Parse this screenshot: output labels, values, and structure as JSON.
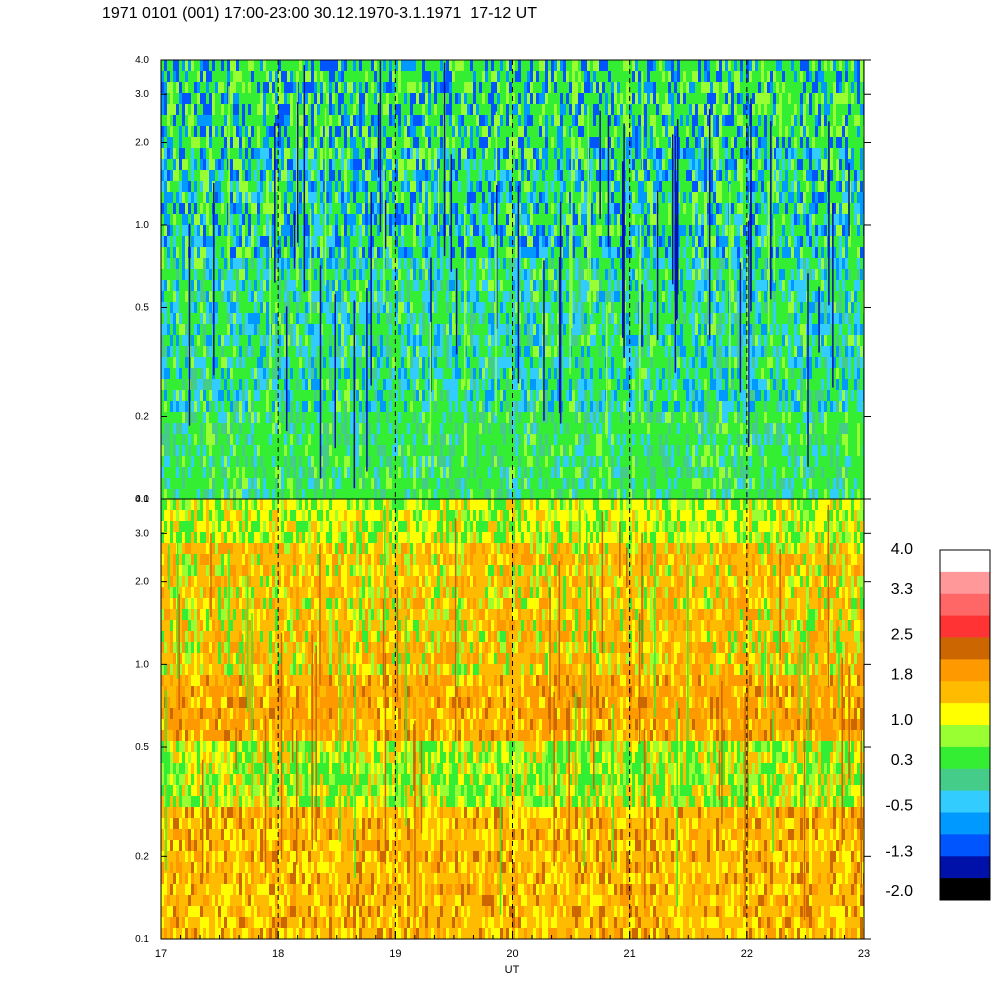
{
  "title": "1971 0101 (001) 17:00-23:00 30.12.1970-3.1.1971  17-12 UT",
  "chart_data": {
    "type": "heatmap",
    "panels": [
      {
        "name": "",
        "y_scale": "log",
        "ylim": [
          0.1,
          4.0
        ],
        "y_ticks": [
          "4.0",
          "3.0",
          "2.0",
          "1.0",
          "0.5",
          "0.2",
          "0.1"
        ],
        "y_tick_values": [
          4.0,
          3.0,
          2.0,
          1.0,
          0.5,
          0.2,
          0.1
        ],
        "dominant_levels": [
          "green",
          "cyan",
          "blue",
          "yellow-green"
        ],
        "low_freq_band_level": "green",
        "notes": "mostly green/cyan with blue streaks near 1.0-2.0"
      },
      {
        "name": "",
        "y_scale": "log",
        "ylim": [
          0.1,
          4.0
        ],
        "y_ticks": [
          "4.0",
          "3.0",
          "2.0",
          "1.0",
          "0.5",
          "0.2",
          "0.1"
        ],
        "y_tick_values": [
          4.0,
          3.0,
          2.0,
          1.0,
          0.5,
          0.2,
          0.1
        ],
        "dominant_levels": [
          "orange",
          "yellow",
          "green"
        ],
        "low_freq_band_level": "orange",
        "notes": "orange band near 0.7-1.1, green streaks near 0.4-0.6"
      }
    ],
    "x_label": "UT",
    "xlim": [
      17,
      23
    ],
    "x_ticks": [
      "17",
      "18",
      "19",
      "20",
      "21",
      "22",
      "23"
    ],
    "x_tick_values": [
      17,
      18,
      19,
      20,
      21,
      22,
      23
    ],
    "dashed_hour_lines": [
      18,
      19,
      20,
      21,
      22
    ],
    "colorbar": {
      "labels": [
        "4.0",
        "3.3",
        "2.5",
        "1.8",
        "1.0",
        "0.3",
        "-0.5",
        "-1.3",
        "-2.0"
      ],
      "label_values": [
        4.0,
        3.3,
        2.5,
        1.8,
        1.0,
        0.3,
        -0.5,
        -1.3,
        -2.0
      ],
      "range": [
        -2.0,
        4.0
      ],
      "colors_top_to_bottom": [
        "#ffffff",
        "#ff9999",
        "#ff6666",
        "#ff3333",
        "#cc6600",
        "#ff9900",
        "#ffbb00",
        "#ffff00",
        "#99ff33",
        "#33ee33",
        "#44cc88",
        "#33ccff",
        "#0099ff",
        "#0055ff",
        "#0011aa",
        "#000000"
      ]
    },
    "level_colors": {
      "black": "#000000",
      "navy": "#0011aa",
      "blue": "#0055ff",
      "sky": "#0099ff",
      "cyan": "#33ccff",
      "teal": "#44cc88",
      "green": "#33ee33",
      "yellow-green": "#99ff33",
      "yellow": "#ffff00",
      "gold": "#ffbb00",
      "orange": "#ff9900",
      "dark-orange": "#cc6600"
    }
  }
}
